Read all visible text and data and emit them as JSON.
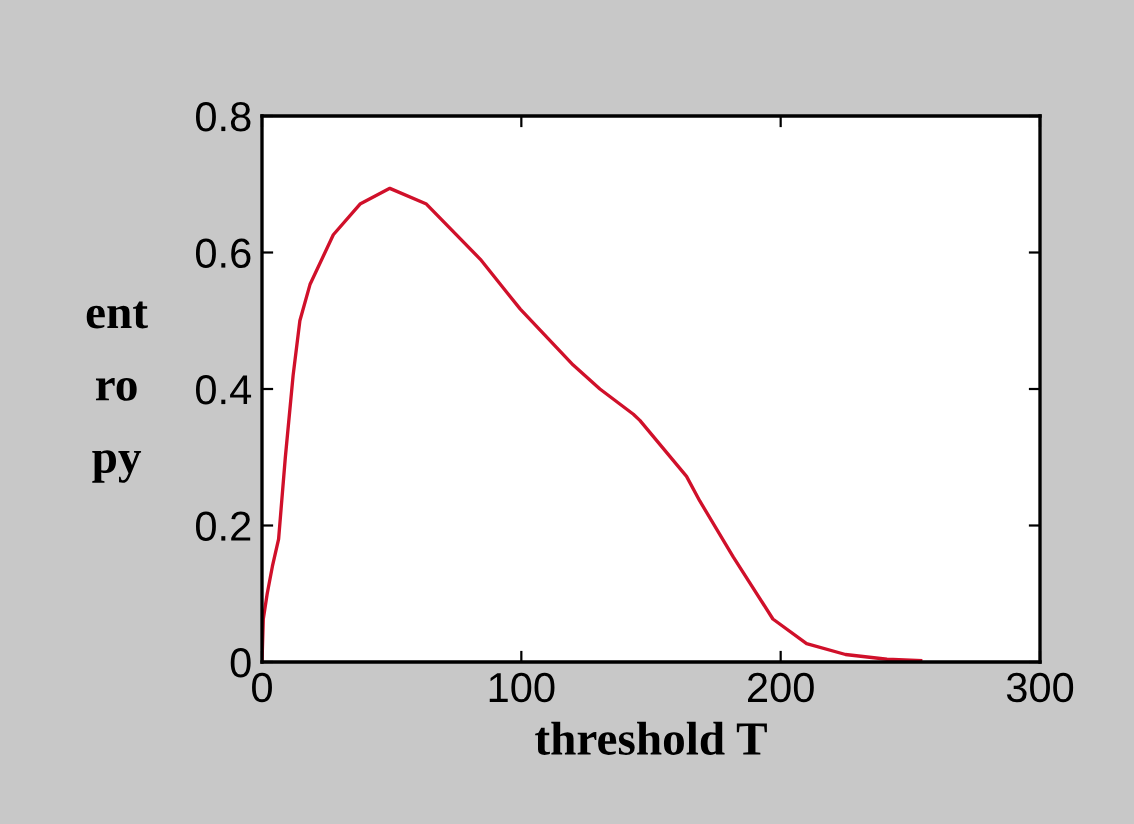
{
  "chart_data": {
    "type": "line",
    "xlabel": "threshold T",
    "ylabel": "ent\nro\npy",
    "xlim": [
      0,
      300
    ],
    "xticks": [
      0,
      100,
      200,
      300
    ],
    "ylim": [
      0,
      0.8
    ],
    "yticks": [
      0,
      0.2,
      0.4,
      0.6,
      0.8
    ],
    "grid": false,
    "series": [
      {
        "color": "#d0102a",
        "x": [
          0,
          0.5,
          2,
          4,
          6.4,
          9,
          12,
          14.6,
          18.5,
          27.5,
          37.8,
          49.3,
          63.4,
          84.2,
          99.6,
          120,
          130.3,
          143.2,
          145.7,
          163.7,
          168.8,
          181.7,
          197,
          210,
          225,
          241,
          254
        ],
        "values": [
          0,
          0.063,
          0.1,
          0.14,
          0.18,
          0.3,
          0.42,
          0.5,
          0.553,
          0.626,
          0.671,
          0.694,
          0.671,
          0.59,
          0.517,
          0.435,
          0.4,
          0.363,
          0.354,
          0.272,
          0.236,
          0.154,
          0.063,
          0.027,
          0.011,
          0.004,
          0.002
        ]
      }
    ]
  }
}
